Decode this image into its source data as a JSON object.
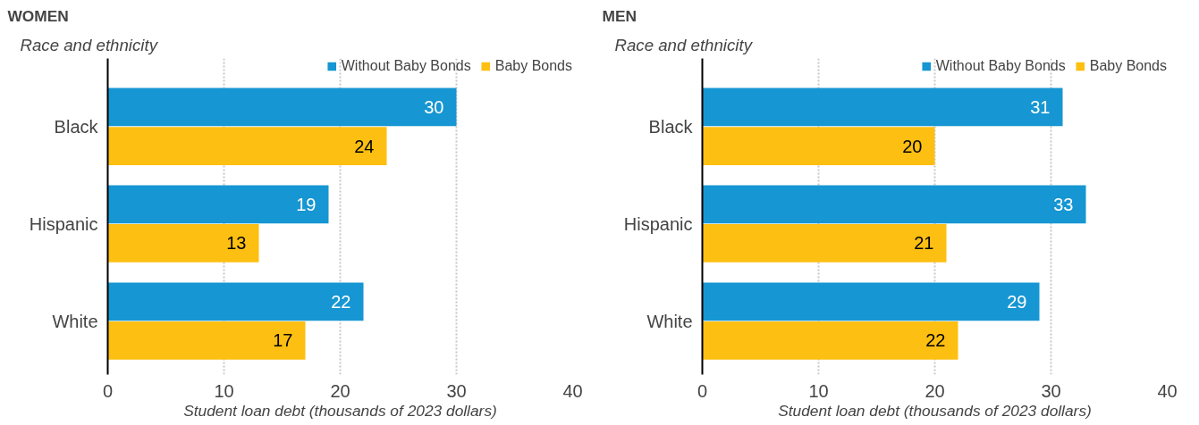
{
  "chart_data": [
    {
      "type": "bar",
      "orientation": "horizontal",
      "title": "WOMEN",
      "ylabel": "Race and ethnicity",
      "xlabel": "Student loan debt (thousands of 2023 dollars)",
      "categories": [
        "Black",
        "Hispanic",
        "White"
      ],
      "series": [
        {
          "name": "Without Baby Bonds",
          "color": "#1696d2",
          "values": [
            30,
            19,
            22
          ]
        },
        {
          "name": "Baby Bonds",
          "color": "#fdbf11",
          "values": [
            24,
            13,
            17
          ]
        }
      ],
      "xlim": [
        0,
        40
      ],
      "xticks": [
        0,
        10,
        20,
        30,
        40
      ],
      "grid": "x",
      "legend": "top",
      "data_labels": true
    },
    {
      "type": "bar",
      "orientation": "horizontal",
      "title": "MEN",
      "ylabel": "Race and ethnicity",
      "xlabel": "Student loan debt (thousands of 2023 dollars)",
      "categories": [
        "Black",
        "Hispanic",
        "White"
      ],
      "series": [
        {
          "name": "Without Baby Bonds",
          "color": "#1696d2",
          "values": [
            31,
            33,
            29
          ]
        },
        {
          "name": "Baby Bonds",
          "color": "#fdbf11",
          "values": [
            20,
            21,
            22
          ]
        }
      ],
      "xlim": [
        0,
        40
      ],
      "xticks": [
        0,
        10,
        20,
        30,
        40
      ],
      "grid": "x",
      "legend": "top",
      "data_labels": true
    }
  ]
}
